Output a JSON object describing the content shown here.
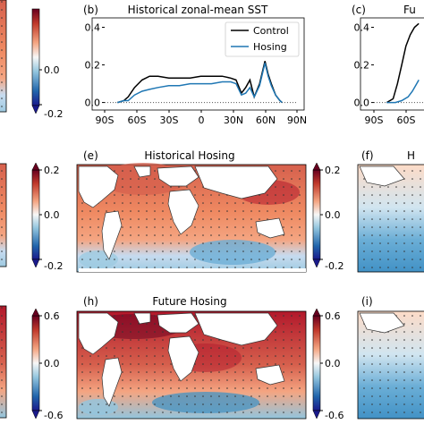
{
  "panels": {
    "b": {
      "letter": "(b)",
      "title": "Historical zonal-mean SST"
    },
    "c": {
      "letter": "(c)",
      "title": "Fu"
    },
    "e": {
      "letter": "(e)",
      "title": "Historical Hosing"
    },
    "f": {
      "letter": "(f)",
      "title": "H"
    },
    "h": {
      "letter": "(h)",
      "title": "Future Hosing"
    },
    "i": {
      "letter": "(i)",
      "title": ""
    }
  },
  "colorbars": {
    "top_left": {
      "ticks": [
        "0.0",
        "-0.2"
      ]
    },
    "mid_left": {
      "ticks": [
        "0.2",
        "0.0",
        "-0.2"
      ]
    },
    "mid_right": {
      "ticks": [
        "0.2",
        "0.0",
        "-0.2"
      ]
    },
    "bot_left": {
      "ticks": [
        "0.6",
        "0.0",
        "-0.6"
      ]
    },
    "bot_right": {
      "ticks": [
        "0.6",
        "0.0",
        "-0.6"
      ]
    }
  },
  "colors": {
    "control": "#000000",
    "hosing": "#1f77b4",
    "warm": "#c0392b",
    "cool": "#4a90d9"
  },
  "chart_data": [
    {
      "panel": "b",
      "type": "line",
      "title": "Historical zonal-mean SST",
      "x_ticks": [
        "90S",
        "60S",
        "30S",
        "0",
        "30N",
        "60N",
        "90N"
      ],
      "y_ticks": [
        "0.4",
        "0.2",
        "0.0"
      ],
      "xlim": [
        -90,
        90
      ],
      "ylim": [
        -0.04,
        0.45
      ],
      "legend": "top-right",
      "series": [
        {
          "name": "Control",
          "color": "#000000",
          "x": [
            -78,
            -72,
            -68,
            -62,
            -55,
            -48,
            -40,
            -30,
            -20,
            -10,
            0,
            10,
            20,
            28,
            33,
            38,
            42,
            46,
            50,
            55,
            60,
            63,
            66,
            70,
            74,
            76
          ],
          "y": [
            0,
            0.01,
            0.03,
            0.08,
            0.12,
            0.14,
            0.14,
            0.13,
            0.13,
            0.13,
            0.14,
            0.14,
            0.14,
            0.13,
            0.12,
            0.05,
            0.08,
            0.12,
            0.03,
            0.1,
            0.22,
            0.15,
            0.1,
            0.04,
            0.01,
            0
          ]
        },
        {
          "name": "Hosing",
          "color": "#1f77b4",
          "x": [
            -78,
            -72,
            -68,
            -62,
            -55,
            -48,
            -40,
            -30,
            -20,
            -10,
            0,
            10,
            20,
            28,
            33,
            38,
            42,
            46,
            50,
            55,
            60,
            63,
            66,
            70,
            74,
            76
          ],
          "y": [
            0,
            0.01,
            0.01,
            0.04,
            0.06,
            0.07,
            0.08,
            0.09,
            0.09,
            0.1,
            0.1,
            0.1,
            0.11,
            0.11,
            0.1,
            0.04,
            0.05,
            0.08,
            0.03,
            0.09,
            0.21,
            0.14,
            0.09,
            0.04,
            0.01,
            0
          ]
        }
      ]
    },
    {
      "panel": "c",
      "type": "line",
      "title": "Fu",
      "x_ticks": [
        "90S",
        "60S"
      ],
      "y_ticks": [
        "0.4",
        "0.2",
        "0.0"
      ],
      "ylim": [
        -0.04,
        0.45
      ],
      "series": [
        {
          "name": "Control",
          "color": "#000000",
          "x": [
            -78,
            -72,
            -68,
            -64,
            -60,
            -56,
            -52,
            -48
          ],
          "y": [
            0,
            0.02,
            0.1,
            0.2,
            0.3,
            0.36,
            0.4,
            0.42
          ]
        },
        {
          "name": "Hosing",
          "color": "#1f77b4",
          "x": [
            -78,
            -70,
            -64,
            -58,
            -54,
            -50,
            -48
          ],
          "y": [
            0,
            0,
            0.01,
            0.03,
            0.06,
            0.1,
            0.12
          ]
        }
      ]
    }
  ]
}
